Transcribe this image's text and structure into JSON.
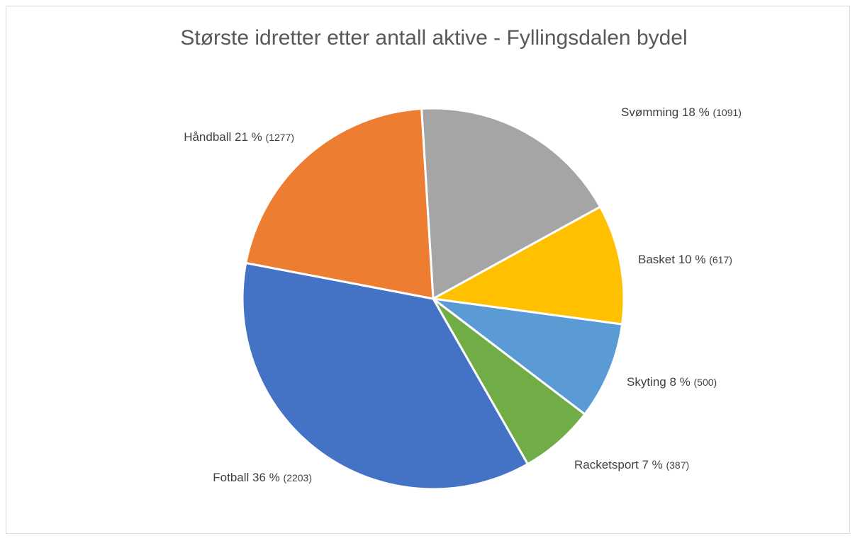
{
  "chart_data": {
    "type": "pie",
    "title": "Største idretter etter antall aktive - Fyllingsdalen bydel",
    "categories": [
      "Svømming",
      "Basket",
      "Skyting",
      "Racketsport",
      "Fotball",
      "Håndball"
    ],
    "values": [
      1091,
      617,
      500,
      387,
      2203,
      1277
    ],
    "value_labels": [
      "(1091)",
      "(617)",
      "(500)",
      "(387)",
      "(2203)",
      "(1277)"
    ],
    "percent_labels": [
      "18 %",
      "10 %",
      "8 %",
      "7 %",
      "36 %",
      "21 %"
    ],
    "colors": [
      "#a5a5a5",
      "#ffc000",
      "#5b9bd5",
      "#70ad47",
      "#4472c4",
      "#ed7d31"
    ]
  }
}
